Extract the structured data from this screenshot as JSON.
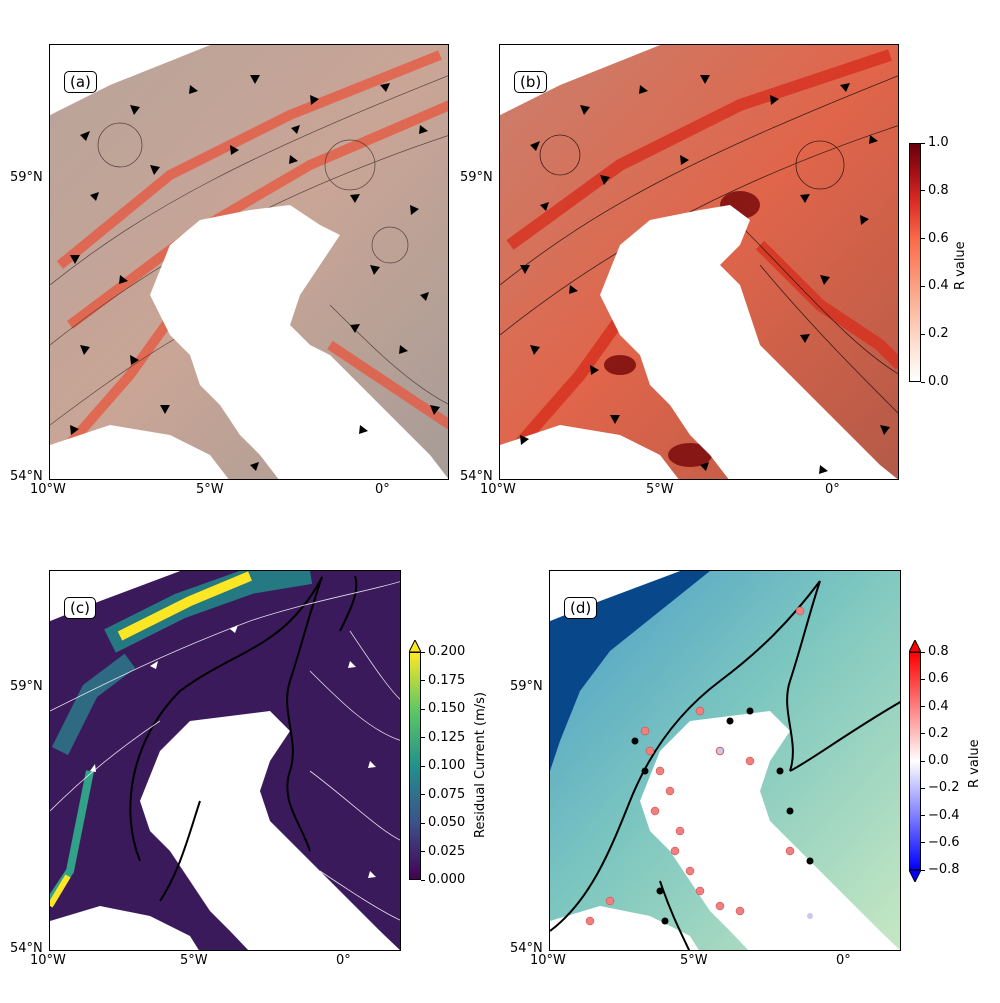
{
  "chart_data": [
    {
      "type": "heatmap",
      "panel_label": "(a)",
      "description_colormap": "Reds",
      "xlim": [
        -10,
        2
      ],
      "ylim": [
        54,
        61.2
      ],
      "x_ticks": [
        "10°W",
        "5°W",
        "0°"
      ],
      "y_ticks": [
        "54°N",
        "59°N"
      ],
      "has_contours": true,
      "has_arrows": true,
      "colorbar": null
    },
    {
      "type": "heatmap",
      "panel_label": "(b)",
      "xlim": [
        -10,
        2
      ],
      "ylim": [
        54,
        61.2
      ],
      "x_ticks": [
        "10°W",
        "5°W",
        "0°"
      ],
      "y_ticks": [
        "54°N",
        "59°N"
      ],
      "has_contours": true,
      "has_arrows": true,
      "colorbar": {
        "label": "R value",
        "range": [
          0.0,
          1.0
        ],
        "ticks": [
          "0.0",
          "0.2",
          "0.4",
          "0.6",
          "0.8",
          "1.0"
        ],
        "colors": [
          "#ffffff",
          "#fcbba1",
          "#fc9272",
          "#fb6a4a",
          "#de2d26",
          "#67000d"
        ]
      }
    },
    {
      "type": "heatmap",
      "panel_label": "(c)",
      "xlim": [
        -10,
        2
      ],
      "ylim": [
        54,
        61.2
      ],
      "x_ticks": [
        "10°W",
        "5°W",
        "0°"
      ],
      "y_ticks": [
        "54°N",
        "59°N"
      ],
      "has_streamlines": true,
      "colorbar": {
        "label": "Residual Current (m/s)",
        "range": [
          0.0,
          0.2
        ],
        "extend": "max",
        "ticks": [
          "0.000",
          "0.025",
          "0.050",
          "0.075",
          "0.100",
          "0.125",
          "0.150",
          "0.175",
          "0.200"
        ],
        "colors": [
          "#440154",
          "#3b528b",
          "#21918c",
          "#5ec962",
          "#fde725"
        ]
      }
    },
    {
      "type": "scatter",
      "panel_label": "(d)",
      "xlim": [
        -10,
        2
      ],
      "ylim": [
        54,
        61.2
      ],
      "x_ticks": [
        "10°W",
        "5°W",
        "0°"
      ],
      "y_ticks": [
        "54°N",
        "59°N"
      ],
      "colorbar": {
        "label": "R value",
        "range": [
          -0.8,
          0.8
        ],
        "extend": "both",
        "ticks": [
          "−0.8",
          "−0.6",
          "−0.4",
          "−0.2",
          "0.0",
          "0.2",
          "0.4",
          "0.6",
          "0.8"
        ],
        "colors": [
          "#0000ff",
          "#8080ff",
          "#ffffff",
          "#ff8080",
          "#ff0000"
        ]
      }
    }
  ]
}
